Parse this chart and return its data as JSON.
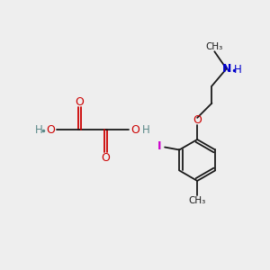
{
  "bg_color": "#eeeeee",
  "line_color": "#1a1a1a",
  "oxygen_color": "#cc0000",
  "nitrogen_color": "#0000cc",
  "iodine_color": "#cc00cc",
  "hydrogen_color": "#5a8888",
  "bond_width": 1.3,
  "figsize": [
    3.0,
    3.0
  ],
  "dpi": 100,
  "xlim": [
    0,
    10
  ],
  "ylim": [
    0,
    10
  ]
}
